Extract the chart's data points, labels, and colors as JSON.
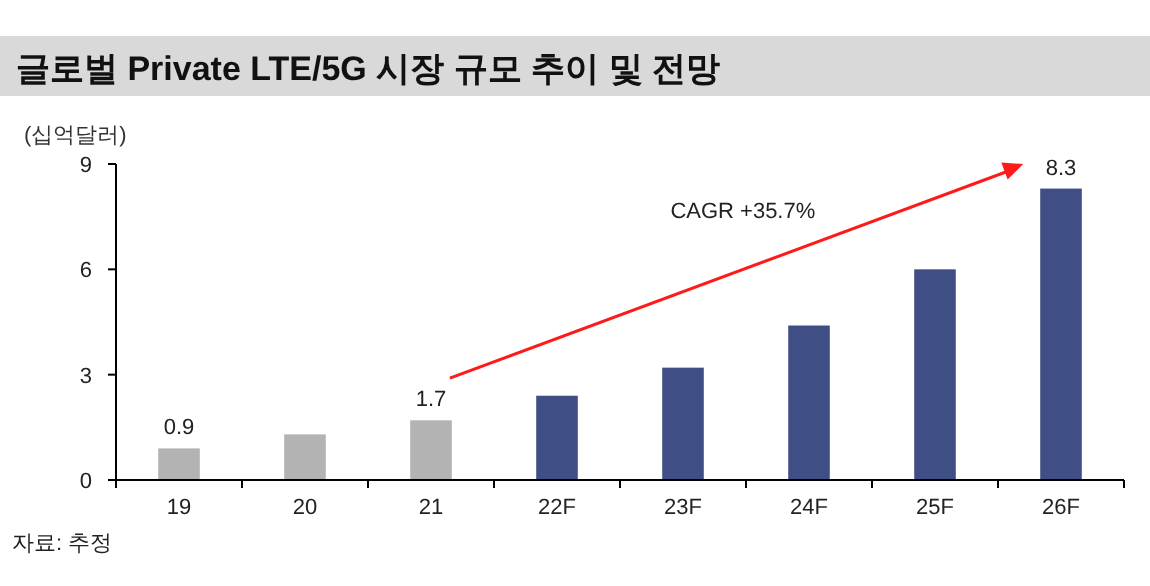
{
  "chart_data": {
    "type": "bar",
    "title": "글로벌 Private LTE/5G 시장 규모 추이 및 전망",
    "ylabel": "(십억달러)",
    "categories": [
      "19",
      "20",
      "21",
      "22F",
      "23F",
      "24F",
      "25F",
      "26F"
    ],
    "values": [
      0.9,
      1.3,
      1.7,
      2.4,
      3.2,
      4.4,
      6.0,
      8.3
    ],
    "colors": [
      "#b3b3b3",
      "#b3b3b3",
      "#b3b3b3",
      "#404e86",
      "#404e86",
      "#404e86",
      "#404e86",
      "#404e86"
    ],
    "value_labels": [
      "0.9",
      null,
      "1.7",
      null,
      null,
      null,
      null,
      "8.3"
    ],
    "ylim": [
      0,
      9
    ],
    "yticks": [
      0,
      3,
      6,
      9
    ],
    "grid": false,
    "annotations": [
      "CAGR +35.7%",
      "자료: 추정"
    ]
  }
}
